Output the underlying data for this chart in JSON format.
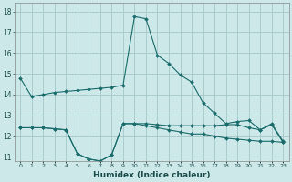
{
  "xlabel": "Humidex (Indice chaleur)",
  "background_color": "#cce8e8",
  "line_color": "#1a6b6b",
  "grid_color": "#aacccc",
  "xlim": [
    -0.5,
    23.5
  ],
  "ylim": [
    10.8,
    18.4
  ],
  "yticks": [
    11,
    12,
    13,
    14,
    15,
    16,
    17,
    18
  ],
  "xticks": [
    0,
    1,
    2,
    3,
    4,
    5,
    6,
    7,
    8,
    9,
    10,
    11,
    12,
    13,
    14,
    15,
    16,
    17,
    18,
    19,
    20,
    21,
    22,
    23
  ],
  "xtick_labels": [
    "0",
    "1",
    "2",
    "3",
    "4",
    "5",
    "6",
    "7",
    "8",
    "9",
    "10",
    "11",
    "12",
    "13",
    "14",
    "15",
    "16",
    "17",
    "18",
    "19",
    "20",
    "21",
    "22",
    "23"
  ],
  "series1_x": [
    0,
    1,
    2,
    3,
    4,
    5,
    6,
    7,
    8,
    9,
    10,
    11,
    12,
    13,
    14,
    15,
    16,
    17,
    18,
    19,
    20,
    21,
    22,
    23
  ],
  "series1_y": [
    14.8,
    13.9,
    14.0,
    14.1,
    14.15,
    14.2,
    14.25,
    14.3,
    14.35,
    14.45,
    17.75,
    17.65,
    15.9,
    15.5,
    14.95,
    14.6,
    13.6,
    13.1,
    12.6,
    12.7,
    12.75,
    12.3,
    12.6,
    11.75
  ],
  "series2_x": [
    0,
    1,
    2,
    3,
    4,
    5,
    6,
    7,
    8,
    9,
    10,
    11,
    12,
    13,
    14,
    15,
    16,
    17,
    18,
    19,
    20,
    21,
    22,
    23
  ],
  "series2_y": [
    12.4,
    12.4,
    12.4,
    12.35,
    12.3,
    11.15,
    10.9,
    10.8,
    11.1,
    12.6,
    12.6,
    12.6,
    12.55,
    12.5,
    12.5,
    12.5,
    12.5,
    12.5,
    12.55,
    12.55,
    12.4,
    12.3,
    12.55,
    11.7
  ],
  "series3_x": [
    0,
    1,
    2,
    3,
    4,
    5,
    6,
    7,
    8,
    9,
    10,
    11,
    12,
    13,
    14,
    15,
    16,
    17,
    18,
    19,
    20,
    21,
    22,
    23
  ],
  "series3_y": [
    12.4,
    12.4,
    12.4,
    12.35,
    12.3,
    11.15,
    10.9,
    10.8,
    11.1,
    12.6,
    12.6,
    12.5,
    12.4,
    12.3,
    12.2,
    12.1,
    12.1,
    12.0,
    11.9,
    11.85,
    11.8,
    11.75,
    11.75,
    11.7
  ]
}
